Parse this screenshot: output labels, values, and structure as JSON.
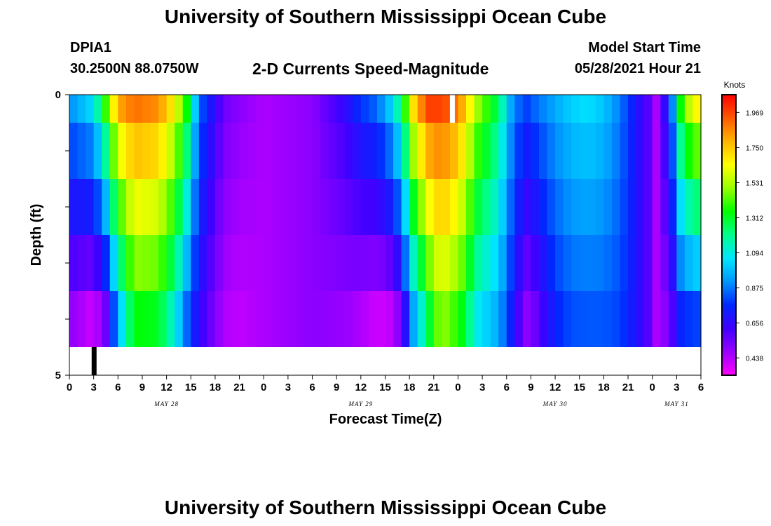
{
  "header": {
    "title": "University of Southern Mississippi Ocean Cube",
    "station_id": "DPIA1",
    "coordinates": "30.2500N  88.0750W",
    "subtitle": "2-D Currents Speed-Magnitude",
    "model_start_label": "Model Start Time",
    "model_start_value": "05/28/2021 Hour 21"
  },
  "footer": {
    "title": "University of Southern Mississippi Ocean Cube"
  },
  "chart_data": {
    "type": "heatmap",
    "title": "2-D Currents Speed-Magnitude",
    "xlabel": "Forecast Time(Z)",
    "ylabel": "Depth (ft)",
    "x_tick_labels": [
      "0",
      "3",
      "6",
      "9",
      "12",
      "15",
      "18",
      "21",
      "0",
      "3",
      "6",
      "9",
      "12",
      "15",
      "18",
      "21",
      "0",
      "3",
      "6",
      "9",
      "12",
      "15",
      "18",
      "21",
      "0",
      "3",
      "6"
    ],
    "x_range_hours": [
      0,
      78
    ],
    "date_labels": [
      {
        "label": "MAY 28",
        "hour": 12
      },
      {
        "label": "MAY 29",
        "hour": 36
      },
      {
        "label": "MAY 30",
        "hour": 60
      },
      {
        "label": "MAY 31",
        "hour": 75
      }
    ],
    "y_tick_labels": [
      "0",
      "5"
    ],
    "ylim": [
      0,
      5
    ],
    "depth_levels_ft": [
      0,
      0.5,
      1.5,
      2.5,
      3.5,
      4.5
    ],
    "colorbar": {
      "title": "Knots",
      "tick_labels": [
        "1.969",
        "1.750",
        "1.531",
        "1.312",
        "1.094",
        "0.875",
        "0.656",
        "0.438"
      ],
      "range": [
        0.33,
        2.08
      ],
      "colors": [
        "#ff00ff",
        "#9a00ff",
        "#4000ff",
        "#0028ff",
        "#0096ff",
        "#00e6ff",
        "#00ff8c",
        "#00ff00",
        "#96ff00",
        "#ffff00",
        "#ffb400",
        "#ff5a00",
        "#ff0000"
      ]
    },
    "profile_hours": [
      0,
      3,
      4.5,
      6,
      8,
      11,
      13,
      14.5,
      16,
      19,
      21,
      24,
      30,
      34,
      36,
      38,
      40,
      41,
      42.5,
      44,
      45,
      46,
      47,
      49,
      50,
      53,
      54.5,
      55.5,
      56.5,
      57.5,
      60,
      62,
      64,
      66,
      68,
      70,
      72,
      72.5,
      73.5,
      74.5,
      75.5,
      77
    ],
    "profile_speed_surface": [
      0.9,
      1.05,
      1.4,
      1.8,
      1.9,
      1.85,
      1.65,
      1.35,
      0.85,
      0.55,
      0.5,
      0.45,
      0.5,
      0.65,
      0.78,
      0.85,
      1.05,
      1.25,
      1.7,
      1.95,
      2.0,
      1.95,
      1.95,
      1.75,
      1.55,
      1.25,
      0.95,
      0.85,
      0.8,
      0.85,
      0.95,
      1.02,
      1.05,
      1.0,
      0.88,
      0.7,
      0.55,
      0.45,
      0.65,
      0.9,
      1.35,
      1.65
    ],
    "profile_speed_bottom": [
      0.5,
      0.4,
      0.55,
      0.95,
      1.35,
      1.32,
      1.1,
      0.85,
      0.65,
      0.45,
      0.42,
      0.45,
      0.5,
      0.48,
      0.45,
      0.4,
      0.43,
      0.55,
      0.95,
      1.2,
      1.4,
      1.5,
      1.45,
      1.3,
      1.1,
      0.95,
      0.75,
      0.6,
      0.5,
      0.55,
      0.75,
      0.82,
      0.83,
      0.83,
      0.8,
      0.7,
      0.55,
      0.45,
      0.5,
      0.6,
      0.75,
      0.8
    ]
  }
}
